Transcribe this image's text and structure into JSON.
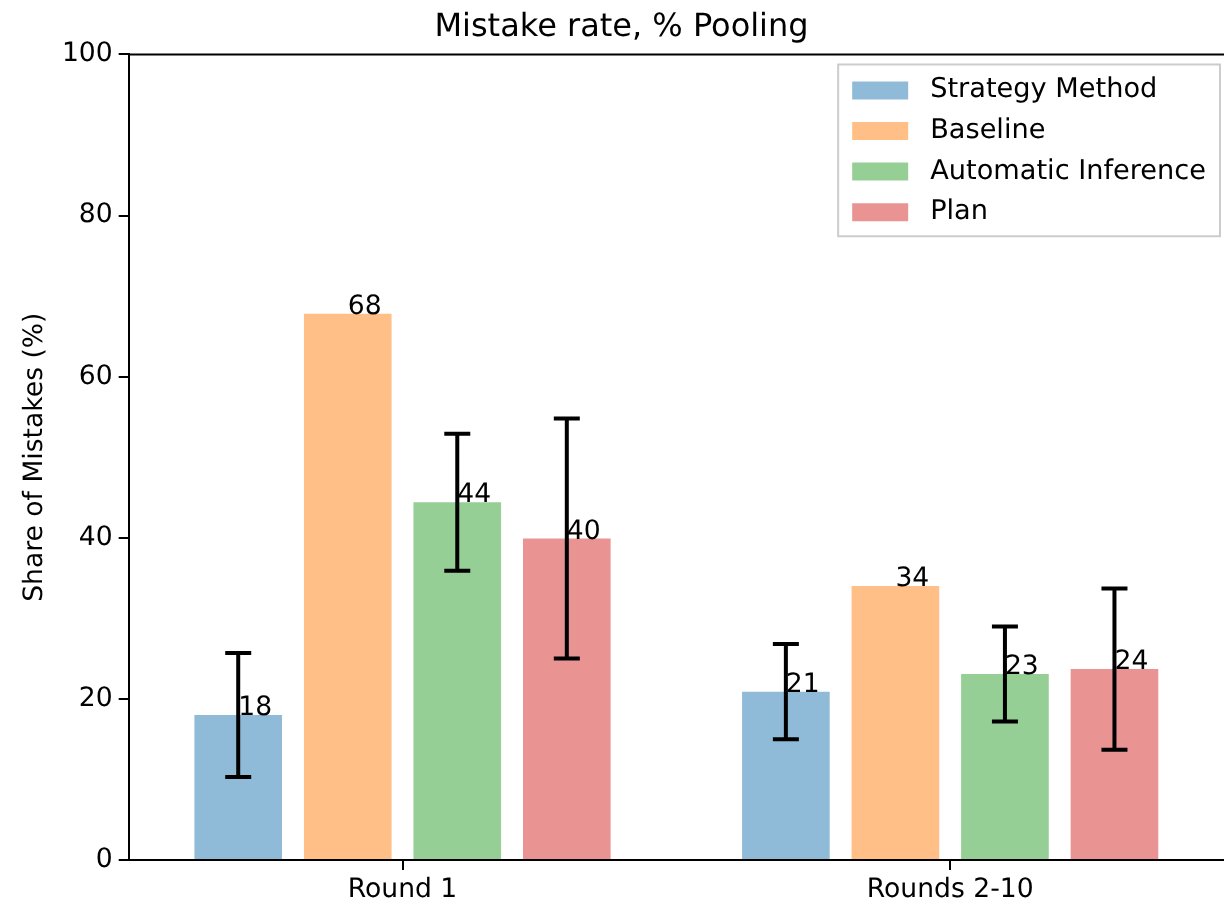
{
  "chart_data": {
    "type": "bar",
    "title": "Mistake rate, % Pooling",
    "ylabel": "Share of Mistakes (%)",
    "categories": [
      "Round 1",
      "Rounds 2-10"
    ],
    "series": [
      {
        "name": "Strategy Method",
        "color": "#8fbbd9",
        "values": [
          18.0,
          20.9
        ],
        "errors": [
          7.7,
          5.9
        ],
        "value_labels": [
          "18",
          "21"
        ]
      },
      {
        "name": "Baseline",
        "color": "#ffbf86",
        "values": [
          67.8,
          34.0
        ],
        "errors": [
          null,
          null
        ],
        "value_labels": [
          "68",
          "34"
        ]
      },
      {
        "name": "Automatic Inference",
        "color": "#95cf95",
        "values": [
          44.4,
          23.1
        ],
        "errors": [
          8.5,
          5.9
        ],
        "value_labels": [
          "44",
          "23"
        ]
      },
      {
        "name": "Plan",
        "color": "#ea9393",
        "values": [
          39.9,
          23.7
        ],
        "errors": [
          14.9,
          10.0
        ],
        "value_labels": [
          "40",
          "24"
        ]
      }
    ],
    "ylim": [
      0,
      100
    ],
    "yticks": [
      0,
      20,
      40,
      60,
      80,
      100
    ],
    "legend": "top right"
  }
}
